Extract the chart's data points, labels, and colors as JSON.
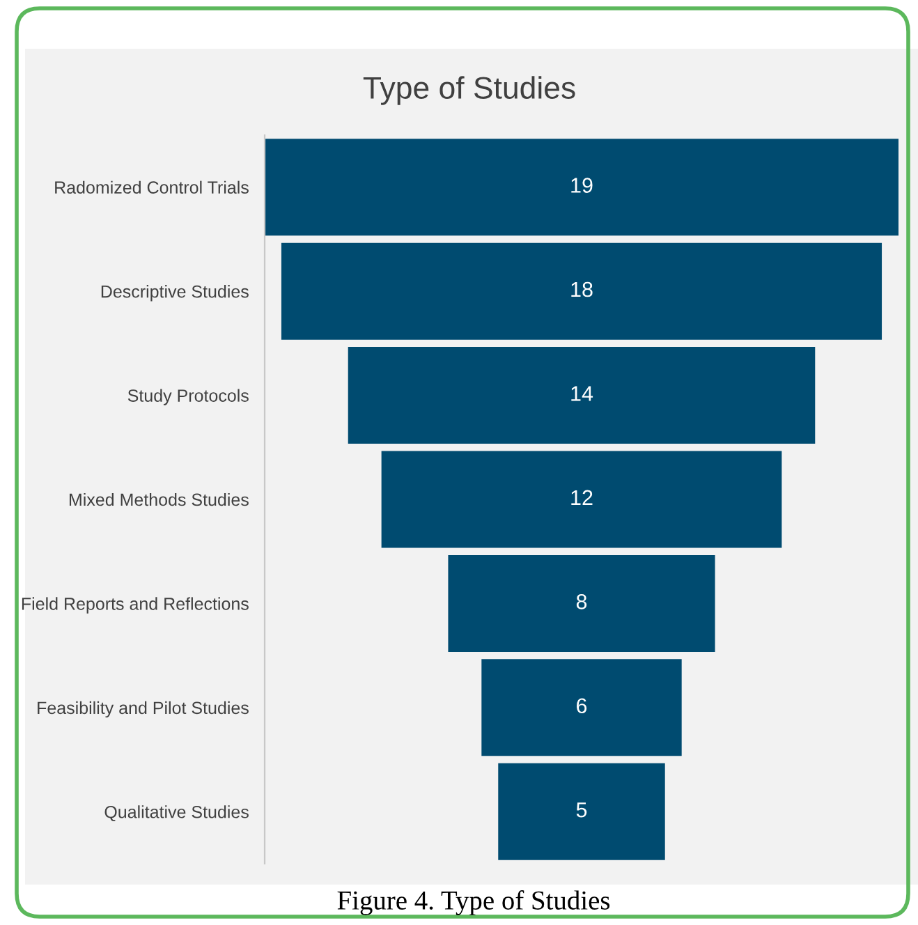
{
  "chart_data": {
    "type": "other",
    "title": "Type of Studies",
    "categories": [
      "Radomized Control Trials",
      "Descriptive Studies",
      "Study Protocols",
      "Mixed Methods Studies",
      "Field Reports and Reflections",
      "Feasibility and Pilot Studies",
      "Qualitative Studies"
    ],
    "values": [
      19,
      18,
      14,
      12,
      8,
      6,
      5
    ],
    "color": "#004b70",
    "data_labels": true,
    "annotations": [
      "Figure 4. Type of Studies"
    ]
  }
}
